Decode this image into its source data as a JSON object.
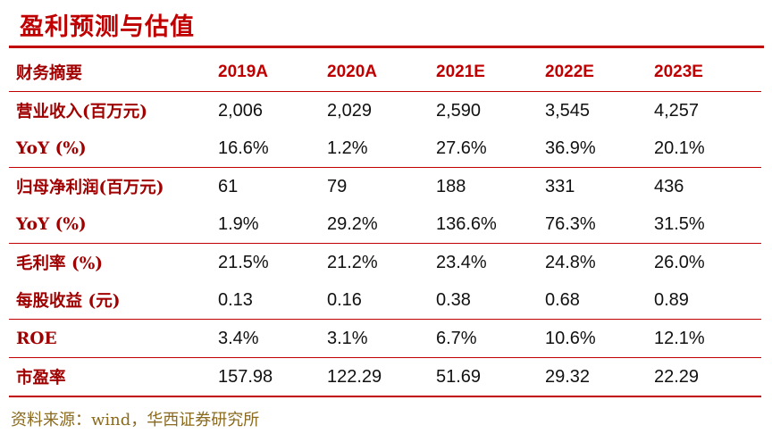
{
  "title": "盈利预测与估值",
  "table": {
    "header_label": "财务摘要",
    "years": [
      "2019A",
      "2020A",
      "2021E",
      "2022E",
      "2023E"
    ],
    "rows": [
      {
        "label": "营业收入(百万元)",
        "values": [
          "2,006",
          "2,029",
          "2,590",
          "3,545",
          "4,257"
        ]
      },
      {
        "label": "YoY (%)",
        "values": [
          "16.6%",
          "1.2%",
          "27.6%",
          "36.9%",
          "20.1%"
        ]
      },
      {
        "label": "归母净利润(百万元)",
        "values": [
          "61",
          "79",
          "188",
          "331",
          "436"
        ]
      },
      {
        "label": "YoY (%)",
        "values": [
          "1.9%",
          "29.2%",
          "136.6%",
          "76.3%",
          "31.5%"
        ]
      },
      {
        "label": "毛利率 (%)",
        "values": [
          "21.5%",
          "21.2%",
          "23.4%",
          "24.8%",
          "26.0%"
        ]
      },
      {
        "label": "每股收益 (元)",
        "values": [
          "0.13",
          "0.16",
          "0.38",
          "0.68",
          "0.89"
        ]
      },
      {
        "label": "ROE",
        "values": [
          "3.4%",
          "3.1%",
          "6.7%",
          "10.6%",
          "12.1%"
        ]
      },
      {
        "label": "市盈率",
        "values": [
          "157.98",
          "122.29",
          "51.69",
          "29.32",
          "22.29"
        ]
      }
    ]
  },
  "source": "资料来源：wind，华西证券研究所",
  "colors": {
    "accent": "#c00000",
    "source_text": "#8a6a1e"
  }
}
